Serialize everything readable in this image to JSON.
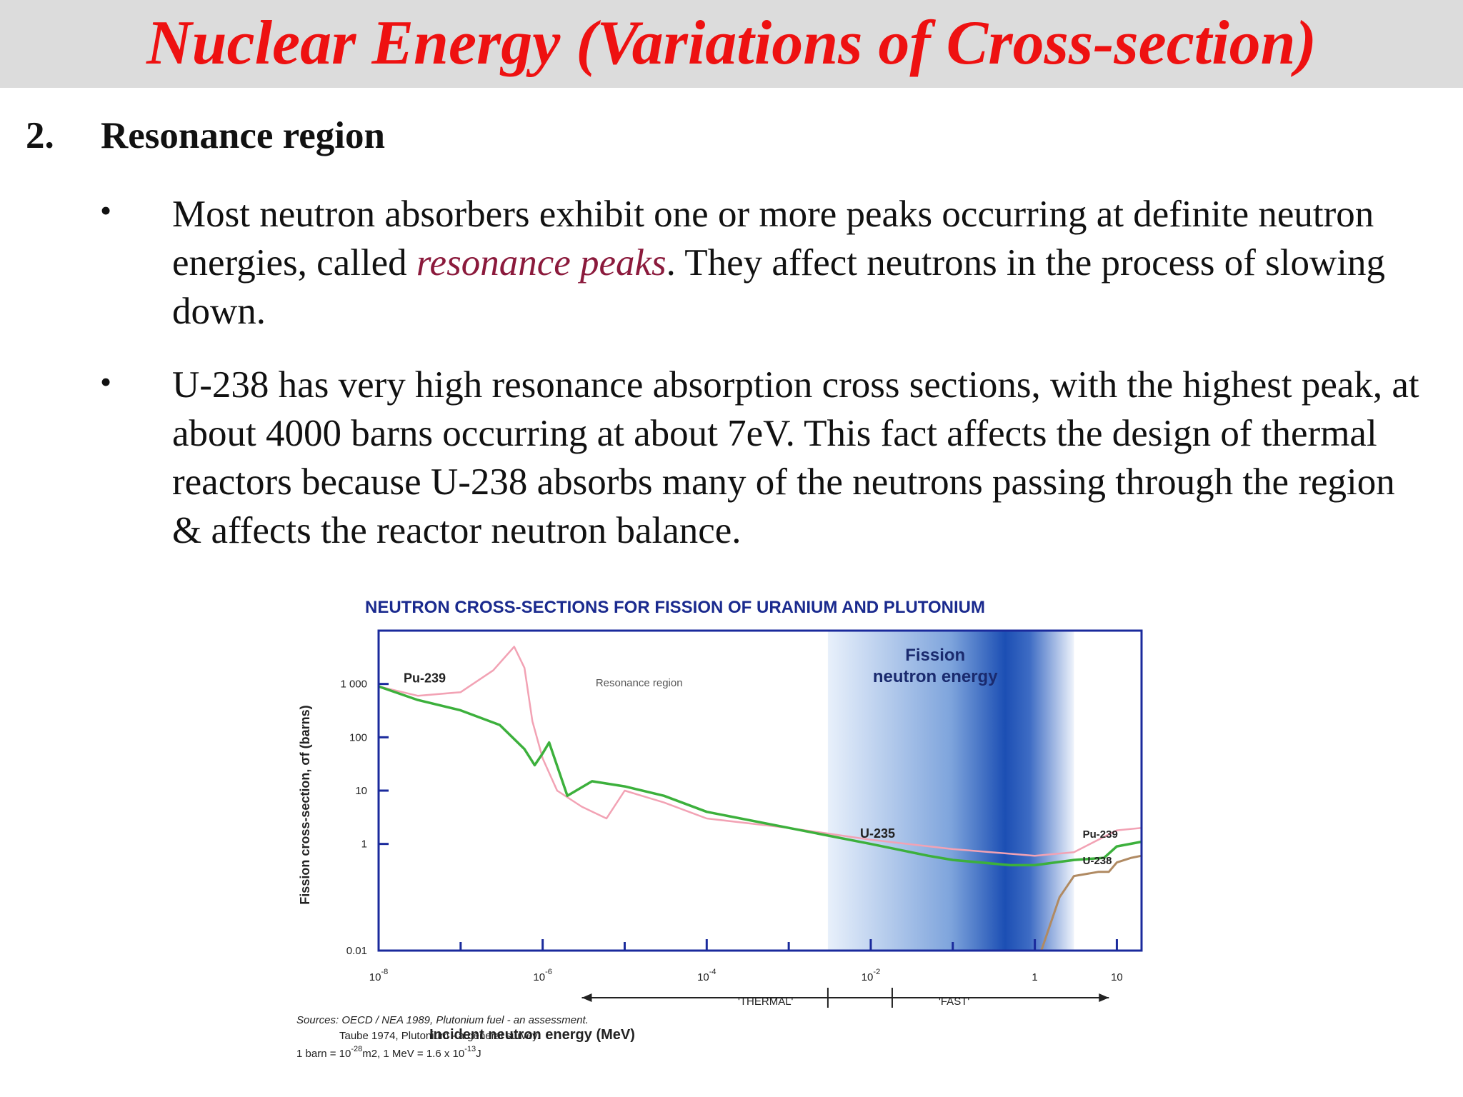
{
  "slide": {
    "title": "Nuclear Energy (Variations of Cross-section)",
    "section_number": "2.",
    "section_title": "Resonance region",
    "bullet_glyph": "•",
    "bullets": [
      {
        "before": "Most neutron absorbers exhibit one or more peaks occurring at definite neutron energies, called ",
        "emphasis": "resonance peaks",
        "after": ". They affect neutrons in the process of slowing down."
      },
      {
        "text": "U-238 has very high resonance absorption cross sections, with the highest peak, at about 4000 barns occurring at about 7eV. This fact affects the design of thermal reactors because U-238 absorbs many of the neutrons passing through the region & affects the reactor neutron balance."
      }
    ],
    "colors": {
      "title": "#ee1111",
      "title_bar": "#dcdcdc",
      "emphasis": "#8b1a3c"
    }
  },
  "chart_data": {
    "type": "line",
    "title": "NEUTRON CROSS-SECTIONS FOR FISSION OF URANIUM AND PLUTONIUM",
    "xlabel": "Incident neutron energy (MeV)",
    "ylabel": "Fission cross-section, σf (barns)",
    "xscale": "log",
    "yscale": "log",
    "xlim": [
      1e-08,
      20
    ],
    "ylim": [
      0.01,
      10000
    ],
    "x_ticks": [
      {
        "value": 1e-08,
        "base": "10",
        "exp": "-8"
      },
      {
        "value": 1e-06,
        "base": "10",
        "exp": "-6"
      },
      {
        "value": 0.0001,
        "base": "10",
        "exp": "-4"
      },
      {
        "value": 0.01,
        "base": "10",
        "exp": "-2"
      },
      {
        "value": 1,
        "base": "1",
        "exp": ""
      },
      {
        "value": 10,
        "base": "10",
        "exp": ""
      }
    ],
    "y_ticks": [
      {
        "value": 1000,
        "label": "1 000"
      },
      {
        "value": 100,
        "label": "100"
      },
      {
        "value": 10,
        "label": "10"
      },
      {
        "value": 1,
        "label": "1"
      },
      {
        "value": 0.01,
        "label": "0.01"
      }
    ],
    "annotations": {
      "resonance": "Resonance region",
      "fission_line1": "Fission",
      "fission_line2": "neutron energy",
      "thermal": "'THERMAL'",
      "fast": "'FAST'"
    },
    "band_range": [
      0.003,
      3
    ],
    "series": [
      {
        "name": "Pu-239",
        "color": "#f2a2b4",
        "x": [
          1e-08,
          3e-08,
          1e-07,
          2.5e-07,
          4.5e-07,
          6e-07,
          7.5e-07,
          1e-06,
          1.5e-06,
          3e-06,
          6e-06,
          1e-05,
          3e-05,
          0.0001,
          0.001,
          0.01,
          0.1,
          1,
          3,
          10,
          20
        ],
        "y": [
          900,
          600,
          700,
          1800,
          5000,
          2000,
          200,
          40,
          10,
          5,
          3,
          10,
          6,
          3,
          2,
          1.2,
          0.8,
          0.6,
          0.7,
          1.8,
          2
        ]
      },
      {
        "name": "U-235",
        "color": "#3cb03c",
        "x": [
          1e-08,
          3e-08,
          1e-07,
          3e-07,
          6e-07,
          8e-07,
          1e-06,
          1.2e-06,
          2e-06,
          4e-06,
          1e-05,
          3e-05,
          0.0001,
          0.001,
          0.01,
          0.05,
          0.1,
          0.5,
          1,
          3,
          7,
          10,
          20
        ],
        "y": [
          900,
          500,
          320,
          170,
          60,
          30,
          50,
          80,
          8,
          15,
          12,
          8,
          4,
          2,
          1,
          0.6,
          0.5,
          0.4,
          0.4,
          0.5,
          0.55,
          0.9,
          1.1
        ]
      },
      {
        "name": "U-238",
        "color": "#b08a62",
        "x": [
          1.2,
          2,
          3,
          6,
          8,
          10,
          15,
          20
        ],
        "y": [
          0.01,
          0.1,
          0.25,
          0.3,
          0.3,
          0.45,
          0.55,
          0.6
        ]
      }
    ],
    "sources": {
      "line1": "Sources: OECD / NEA 1989, Plutonium fuel - an assessment.",
      "line2": "Taube 1974, Plutonium - a general survey.",
      "unit_a": "1 barn = 10",
      "unit_a_exp": "-28",
      "unit_b": "m2, 1 MeV = 1.6 x 10",
      "unit_b_exp": "-13",
      "unit_c": "J"
    }
  }
}
